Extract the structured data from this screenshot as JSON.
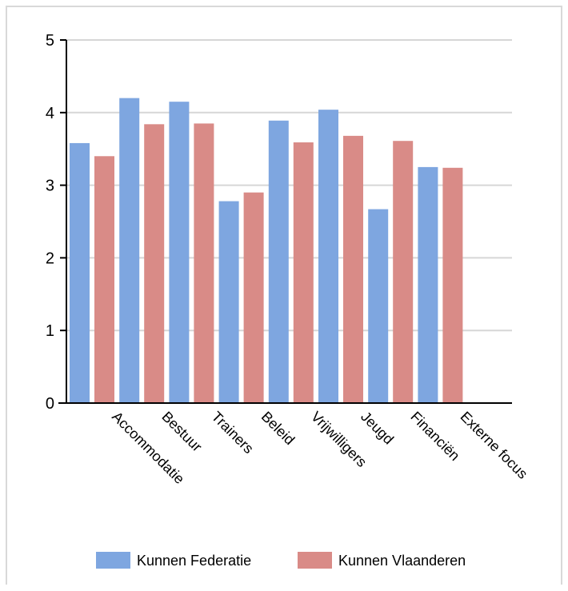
{
  "chart_data": {
    "type": "bar",
    "title": "",
    "xlabel": "",
    "ylabel": "",
    "ylim": [
      0,
      5
    ],
    "yticks": [
      0,
      1,
      2,
      3,
      4,
      5
    ],
    "grid": true,
    "legend_position": "bottom",
    "categories": [
      "Accommodatie",
      "Bestuur",
      "Trainers",
      "Beleid",
      "Vrijwilligers",
      "Jeugd",
      "Financiën",
      "Externe focus"
    ],
    "series": [
      {
        "name": "Kunnen Federatie",
        "color": "#7ea6e0",
        "values": [
          3.58,
          4.2,
          4.15,
          2.78,
          3.89,
          4.04,
          2.67,
          3.25
        ]
      },
      {
        "name": "Kunnen Vlaanderen",
        "color": "#d98b87",
        "values": [
          3.4,
          3.84,
          3.85,
          2.9,
          3.59,
          3.68,
          3.61,
          3.24
        ]
      }
    ]
  }
}
